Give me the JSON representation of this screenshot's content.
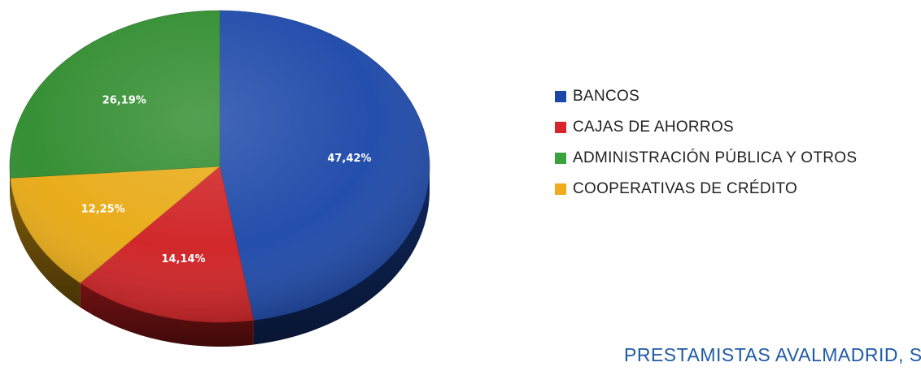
{
  "chart_data": {
    "type": "pie",
    "title": "",
    "slices": [
      {
        "label": "BANCOS",
        "value": 47.42,
        "value_text": "47,42%",
        "color": "#1b47a8"
      },
      {
        "label": "CAJAS DE AHORROS",
        "value": 14.14,
        "value_text": "14,14%",
        "color": "#cf1f22"
      },
      {
        "label": "COOPERATIVAS DE CRÉDITO",
        "value": 12.25,
        "value_text": "12,25%",
        "color": "#e8a912"
      },
      {
        "label": "ADMINISTRACIÓN PÚBLICA Y OTROS",
        "value": 26.19,
        "value_text": "26,19%",
        "color": "#2e8b2c"
      }
    ],
    "legend": {
      "placement": "right",
      "items": [
        {
          "label": "BANCOS",
          "color": "#1b47a8"
        },
        {
          "label": "CAJAS DE AHORROS",
          "color": "#d8242b"
        },
        {
          "label": "ADMINISTRACIÓN PÚBLICA Y OTROS",
          "color": "#3aa23c"
        },
        {
          "label": "COOPERATIVAS DE CRÉDITO",
          "color": "#f0aa1c"
        }
      ]
    }
  },
  "footer": {
    "title": "PRESTAMISTAS AVALMADRID, S.G"
  }
}
